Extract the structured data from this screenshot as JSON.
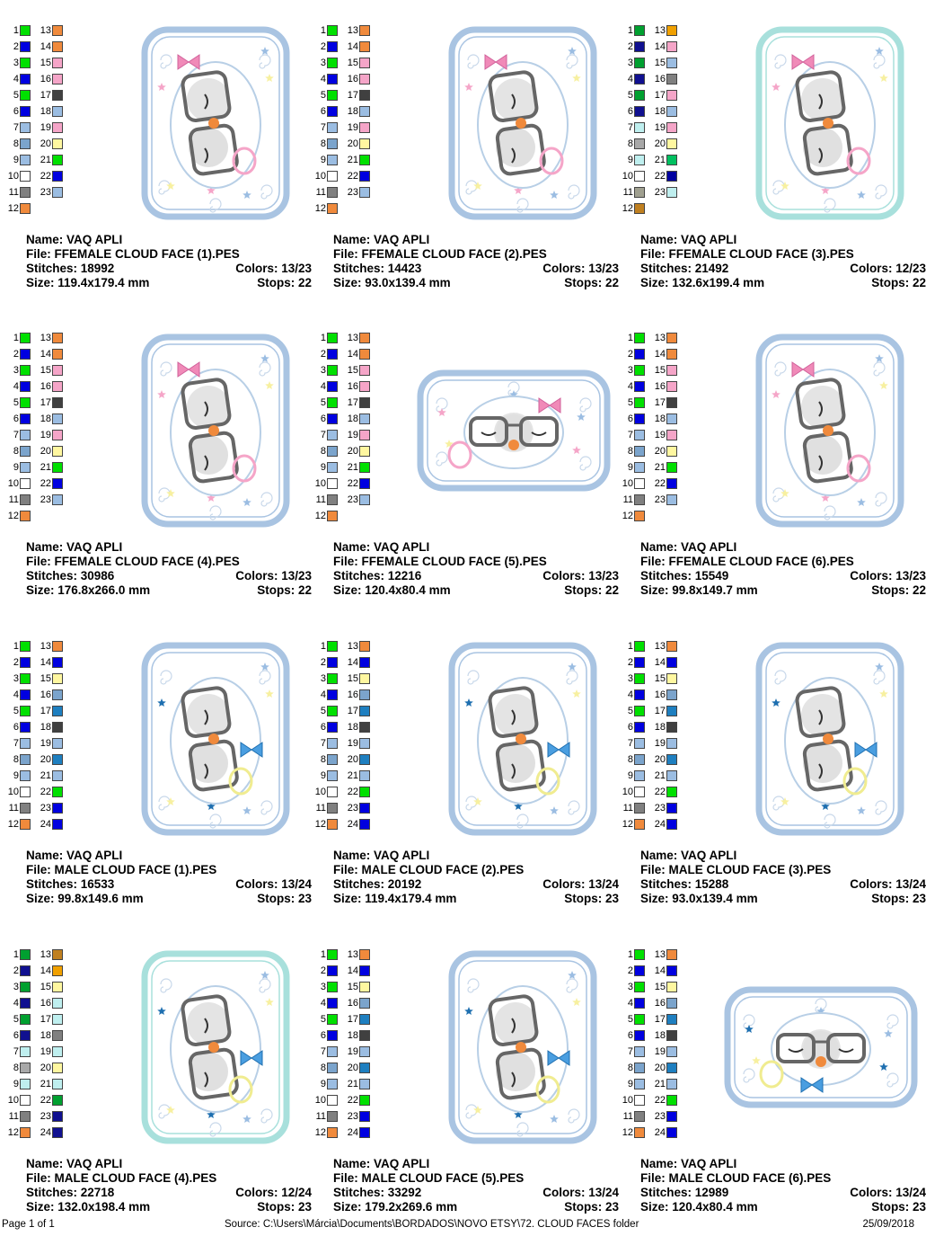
{
  "designs": [
    {
      "name_label": "Name: VAQ APLI",
      "file_label": "File: FFEMALE CLOUD FACE (1).PES",
      "stitches_label": "Stitches: 18992",
      "colors_label": "Colors: 13/23",
      "size_label": "Size: 119.4x179.4 mm",
      "stops_label": "Stops: 22",
      "gender": "female",
      "orientation": "portrait",
      "frame": "#a9c4e2",
      "swatches": [
        "#00e000",
        "#0000e0",
        "#00e000",
        "#0000e0",
        "#00e000",
        "#0000e0",
        "#9bbde2",
        "#7ba4cc",
        "#9bbde2",
        "#ffffff",
        "#808080",
        "#f08a3c",
        "#f08a3c",
        "#f08a3c",
        "#f5a5c8",
        "#f5a5c8",
        "#404040",
        "#9bbde2",
        "#f5a5c8",
        "#fff7a0",
        "#00e000",
        "#0000e0",
        "#9bbde2"
      ]
    },
    {
      "name_label": "Name: VAQ APLI",
      "file_label": "File: FFEMALE CLOUD FACE (2).PES",
      "stitches_label": "Stitches: 14423",
      "colors_label": "Colors: 13/23",
      "size_label": "Size: 93.0x139.4 mm",
      "stops_label": "Stops: 22",
      "gender": "female",
      "orientation": "portrait",
      "frame": "#a9c4e2",
      "swatches": [
        "#00e000",
        "#0000e0",
        "#00e000",
        "#0000e0",
        "#00e000",
        "#0000e0",
        "#9bbde2",
        "#7ba4cc",
        "#9bbde2",
        "#ffffff",
        "#808080",
        "#f08a3c",
        "#f08a3c",
        "#f08a3c",
        "#f5a5c8",
        "#f5a5c8",
        "#404040",
        "#9bbde2",
        "#f5a5c8",
        "#fff7a0",
        "#00e000",
        "#0000e0",
        "#9bbde2"
      ]
    },
    {
      "name_label": "Name: VAQ APLI",
      "file_label": "File: FFEMALE CLOUD FACE (3).PES",
      "stitches_label": "Stitches: 21492",
      "colors_label": "Colors: 12/23",
      "size_label": "Size: 132.6x199.4 mm",
      "stops_label": "Stops: 22",
      "gender": "female",
      "orientation": "portrait",
      "frame": "#a8e0dc",
      "swatches": [
        "#00a030",
        "#101090",
        "#00a030",
        "#101090",
        "#00a030",
        "#101090",
        "#bfefef",
        "#a8a8a8",
        "#bfefef",
        "#ffffff",
        "#a0a090",
        "#c08020",
        "#f0a000",
        "#f5a5c8",
        "#9bbde2",
        "#808080",
        "#f5a5c8",
        "#9bbde2",
        "#f5a5c8",
        "#fff7a0",
        "#00c060",
        "#0000a0",
        "#bfefef"
      ]
    },
    {
      "name_label": "Name: VAQ APLI",
      "file_label": "File: FFEMALE CLOUD FACE (4).PES",
      "stitches_label": "Stitches: 30986",
      "colors_label": "Colors: 13/23",
      "size_label": "Size: 176.8x266.0 mm",
      "stops_label": "Stops: 22",
      "gender": "female",
      "orientation": "portrait",
      "frame": "#a9c4e2",
      "swatches": [
        "#00e000",
        "#0000e0",
        "#00e000",
        "#0000e0",
        "#00e000",
        "#0000e0",
        "#9bbde2",
        "#7ba4cc",
        "#9bbde2",
        "#ffffff",
        "#808080",
        "#f08a3c",
        "#f08a3c",
        "#f08a3c",
        "#f5a5c8",
        "#f5a5c8",
        "#404040",
        "#9bbde2",
        "#f5a5c8",
        "#fff7a0",
        "#00e000",
        "#0000e0",
        "#9bbde2"
      ]
    },
    {
      "name_label": "Name: VAQ APLI",
      "file_label": "File: FFEMALE CLOUD FACE (5).PES",
      "stitches_label": "Stitches: 12216",
      "colors_label": "Colors: 13/23",
      "size_label": "Size: 120.4x80.4 mm",
      "stops_label": "Stops: 22",
      "gender": "female",
      "orientation": "landscape",
      "frame": "#a9c4e2",
      "swatches": [
        "#00e000",
        "#0000e0",
        "#00e000",
        "#0000e0",
        "#00e000",
        "#0000e0",
        "#9bbde2",
        "#7ba4cc",
        "#9bbde2",
        "#ffffff",
        "#808080",
        "#f08a3c",
        "#f08a3c",
        "#f08a3c",
        "#f5a5c8",
        "#f5a5c8",
        "#404040",
        "#9bbde2",
        "#f5a5c8",
        "#fff7a0",
        "#00e000",
        "#0000e0",
        "#9bbde2"
      ]
    },
    {
      "name_label": "Name: VAQ APLI",
      "file_label": "File: FFEMALE CLOUD FACE (6).PES",
      "stitches_label": "Stitches: 15549",
      "colors_label": "Colors: 13/23",
      "size_label": "Size: 99.8x149.7 mm",
      "stops_label": "Stops: 22",
      "gender": "female",
      "orientation": "portrait",
      "frame": "#a9c4e2",
      "swatches": [
        "#00e000",
        "#0000e0",
        "#00e000",
        "#0000e0",
        "#00e000",
        "#0000e0",
        "#9bbde2",
        "#7ba4cc",
        "#9bbde2",
        "#ffffff",
        "#808080",
        "#f08a3c",
        "#f08a3c",
        "#f08a3c",
        "#f5a5c8",
        "#f5a5c8",
        "#404040",
        "#9bbde2",
        "#f5a5c8",
        "#fff7a0",
        "#00e000",
        "#0000e0",
        "#9bbde2"
      ]
    },
    {
      "name_label": "Name: VAQ APLI",
      "file_label": "File: MALE CLOUD FACE (1).PES",
      "stitches_label": "Stitches: 16533",
      "colors_label": "Colors: 13/24",
      "size_label": "Size: 99.8x149.6 mm",
      "stops_label": "Stops: 23",
      "gender": "male",
      "orientation": "portrait",
      "frame": "#a9c4e2",
      "swatches": [
        "#00e000",
        "#0000e0",
        "#00e000",
        "#0000e0",
        "#00e000",
        "#0000e0",
        "#9bbde2",
        "#7ba4cc",
        "#9bbde2",
        "#ffffff",
        "#808080",
        "#f08a3c",
        "#f08a3c",
        "#0000e0",
        "#fff7a0",
        "#7ba4cc",
        "#1e7fc0",
        "#404040",
        "#9bbde2",
        "#1e7fc0",
        "#9bbde2",
        "#00e000",
        "#0000e0",
        "#0000e0"
      ]
    },
    {
      "name_label": "Name: VAQ APLI",
      "file_label": "File: MALE CLOUD FACE (2).PES",
      "stitches_label": "Stitches: 20192",
      "colors_label": "Colors: 13/24",
      "size_label": "Size: 119.4x179.4 mm",
      "stops_label": "Stops: 23",
      "gender": "male",
      "orientation": "portrait",
      "frame": "#a9c4e2",
      "swatches": [
        "#00e000",
        "#0000e0",
        "#00e000",
        "#0000e0",
        "#00e000",
        "#0000e0",
        "#9bbde2",
        "#7ba4cc",
        "#9bbde2",
        "#ffffff",
        "#808080",
        "#f08a3c",
        "#f08a3c",
        "#0000e0",
        "#fff7a0",
        "#7ba4cc",
        "#1e7fc0",
        "#404040",
        "#9bbde2",
        "#1e7fc0",
        "#9bbde2",
        "#00e000",
        "#0000e0",
        "#0000e0"
      ]
    },
    {
      "name_label": "Name: VAQ APLI",
      "file_label": "File: MALE CLOUD FACE (3).PES",
      "stitches_label": "Stitches: 15288",
      "colors_label": "Colors: 13/24",
      "size_label": "Size: 93.0x139.4 mm",
      "stops_label": "Stops: 23",
      "gender": "male",
      "orientation": "portrait",
      "frame": "#a9c4e2",
      "swatches": [
        "#00e000",
        "#0000e0",
        "#00e000",
        "#0000e0",
        "#00e000",
        "#0000e0",
        "#9bbde2",
        "#7ba4cc",
        "#9bbde2",
        "#ffffff",
        "#808080",
        "#f08a3c",
        "#f08a3c",
        "#0000e0",
        "#fff7a0",
        "#7ba4cc",
        "#1e7fc0",
        "#404040",
        "#9bbde2",
        "#1e7fc0",
        "#9bbde2",
        "#00e000",
        "#0000e0",
        "#0000e0"
      ]
    },
    {
      "name_label": "Name: VAQ APLI",
      "file_label": "File: MALE CLOUD FACE (4).PES",
      "stitches_label": "Stitches: 22718",
      "colors_label": "Colors: 12/24",
      "size_label": "Size: 132.0x198.4 mm",
      "stops_label": "Stops: 23",
      "gender": "male",
      "orientation": "portrait",
      "frame": "#a8e0dc",
      "swatches": [
        "#00a030",
        "#101090",
        "#00a030",
        "#101090",
        "#00a030",
        "#101090",
        "#bfefef",
        "#a8a8a8",
        "#bfefef",
        "#ffffff",
        "#808080",
        "#f08a3c",
        "#c08020",
        "#f0a000",
        "#fff7a0",
        "#bfefef",
        "#bfefef",
        "#808080",
        "#bfefef",
        "#fff7a0",
        "#bfefef",
        "#00a030",
        "#101090",
        "#101090"
      ]
    },
    {
      "name_label": "Name: VAQ APLI",
      "file_label": "File: MALE CLOUD FACE (5).PES",
      "stitches_label": "Stitches: 33292",
      "colors_label": "Colors: 13/24",
      "size_label": "Size: 179.2x269.6 mm",
      "stops_label": "Stops: 23",
      "gender": "male",
      "orientation": "portrait",
      "frame": "#a9c4e2",
      "swatches": [
        "#00e000",
        "#0000e0",
        "#00e000",
        "#0000e0",
        "#00e000",
        "#0000e0",
        "#9bbde2",
        "#7ba4cc",
        "#9bbde2",
        "#ffffff",
        "#808080",
        "#f08a3c",
        "#f08a3c",
        "#0000e0",
        "#fff7a0",
        "#7ba4cc",
        "#1e7fc0",
        "#404040",
        "#9bbde2",
        "#1e7fc0",
        "#9bbde2",
        "#00e000",
        "#0000e0",
        "#0000e0"
      ]
    },
    {
      "name_label": "Name: VAQ APLI",
      "file_label": "File: MALE CLOUD FACE (6).PES",
      "stitches_label": "Stitches: 12989",
      "colors_label": "Colors: 13/24",
      "size_label": "Size: 120.4x80.4 mm",
      "stops_label": "Stops: 23",
      "gender": "male",
      "orientation": "landscape",
      "frame": "#a9c4e2",
      "swatches": [
        "#00e000",
        "#0000e0",
        "#00e000",
        "#0000e0",
        "#00e000",
        "#0000e0",
        "#9bbde2",
        "#7ba4cc",
        "#9bbde2",
        "#ffffff",
        "#808080",
        "#f08a3c",
        "#f08a3c",
        "#0000e0",
        "#fff7a0",
        "#7ba4cc",
        "#1e7fc0",
        "#404040",
        "#9bbde2",
        "#1e7fc0",
        "#9bbde2",
        "#00e000",
        "#0000e0",
        "#0000e0"
      ]
    }
  ],
  "footer": {
    "page": "Page 1 of 1",
    "source": "Source: C:\\Users\\Márcia\\Documents\\BORDADOS\\NOVO ETSY\\72. CLOUD FACES folder",
    "date": "25/09/2018"
  }
}
